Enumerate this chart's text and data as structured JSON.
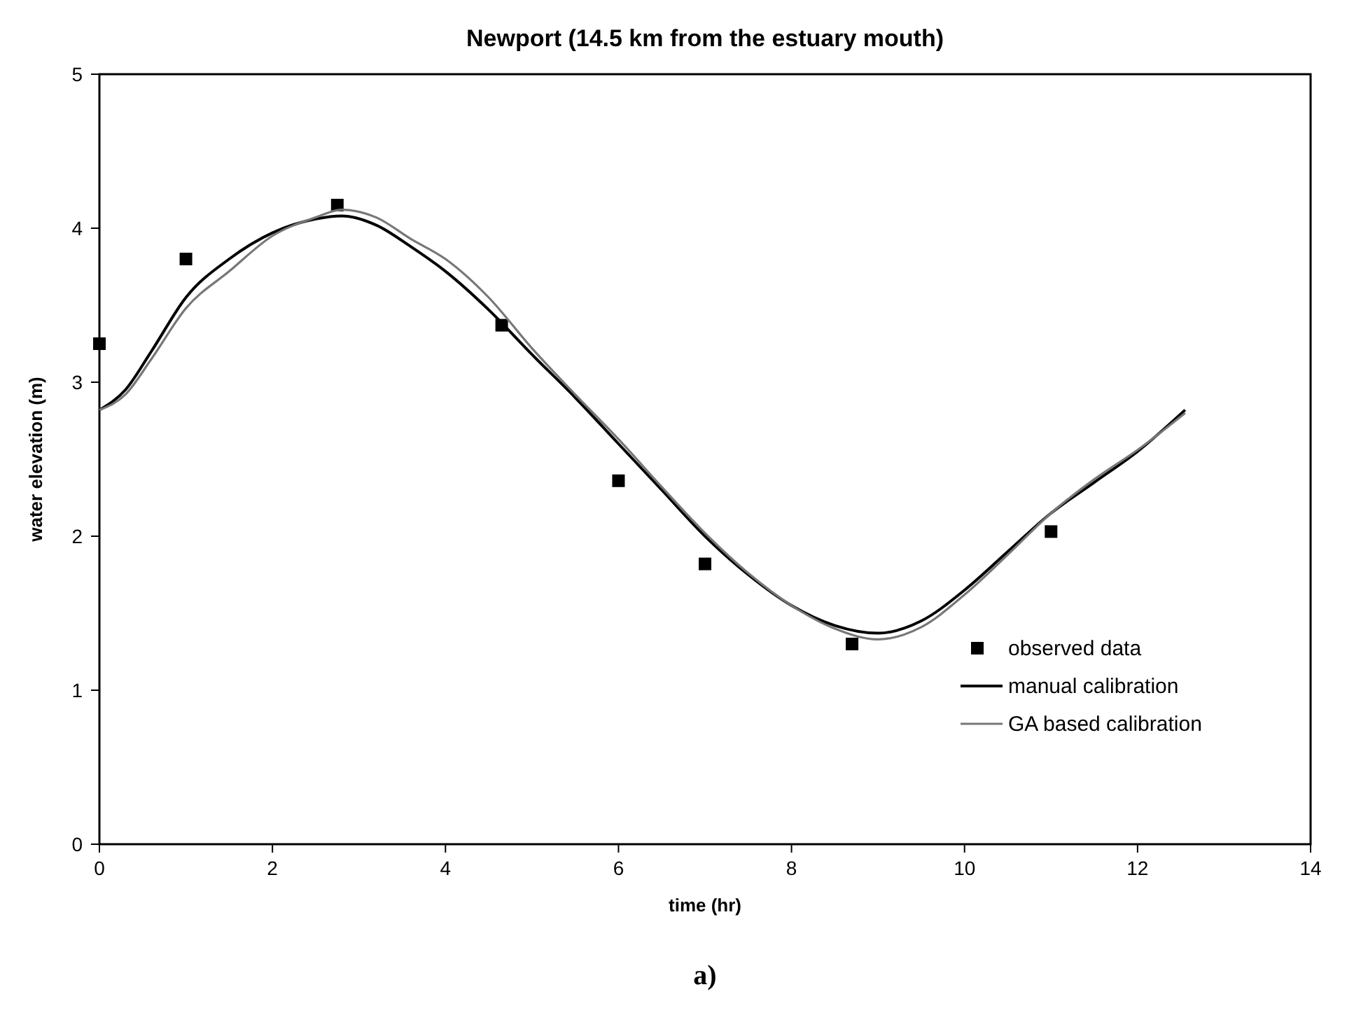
{
  "chart_data": {
    "type": "scatter",
    "title": "Newport (14.5 km from the estuary mouth)",
    "xlabel": "time (hr)",
    "ylabel": "water elevation (m)",
    "xlim": [
      0,
      14
    ],
    "xticks": [
      0,
      2,
      4,
      6,
      8,
      10,
      12,
      14
    ],
    "ylim": [
      0,
      5
    ],
    "yticks": [
      0,
      1,
      2,
      3,
      4,
      5
    ],
    "grid": false,
    "legend": "bottom right",
    "annotations": [
      "a)"
    ],
    "series": [
      {
        "name": "observed data",
        "marker": "square",
        "color": "#000000",
        "x": [
          0,
          1,
          2.75,
          4.65,
          6,
          7,
          8.7,
          11
        ],
        "values": [
          3.25,
          3.8,
          4.15,
          3.37,
          2.36,
          1.82,
          1.3,
          2.03
        ]
      },
      {
        "name": "manual calibration",
        "type": "line",
        "marker": "none",
        "color": "#000000",
        "x": [
          0,
          0.3,
          0.6,
          1,
          1.5,
          2,
          2.5,
          2.8,
          3.2,
          3.6,
          4,
          4.5,
          5,
          5.5,
          6,
          6.5,
          7,
          7.5,
          8,
          8.5,
          9,
          9.5,
          10,
          10.5,
          11,
          11.5,
          12,
          12.55
        ],
        "values": [
          2.82,
          2.95,
          3.2,
          3.55,
          3.8,
          3.97,
          4.06,
          4.08,
          4.02,
          3.88,
          3.72,
          3.47,
          3.18,
          2.9,
          2.6,
          2.3,
          2.0,
          1.75,
          1.55,
          1.42,
          1.37,
          1.45,
          1.65,
          1.9,
          2.15,
          2.35,
          2.55,
          2.82
        ]
      },
      {
        "name": "GA based calibration",
        "type": "line",
        "marker": "none",
        "color": "#777777",
        "x": [
          0,
          0.3,
          0.6,
          1,
          1.5,
          2,
          2.5,
          2.8,
          3.2,
          3.6,
          4,
          4.5,
          5,
          5.5,
          6,
          6.5,
          7,
          7.5,
          8,
          8.5,
          9,
          9.5,
          10,
          10.5,
          11,
          11.5,
          12,
          12.55
        ],
        "values": [
          2.82,
          2.92,
          3.15,
          3.48,
          3.72,
          3.95,
          4.07,
          4.12,
          4.07,
          3.93,
          3.8,
          3.55,
          3.22,
          2.92,
          2.63,
          2.32,
          2.02,
          1.76,
          1.55,
          1.4,
          1.33,
          1.41,
          1.62,
          1.88,
          2.15,
          2.37,
          2.56,
          2.8
        ]
      }
    ]
  }
}
